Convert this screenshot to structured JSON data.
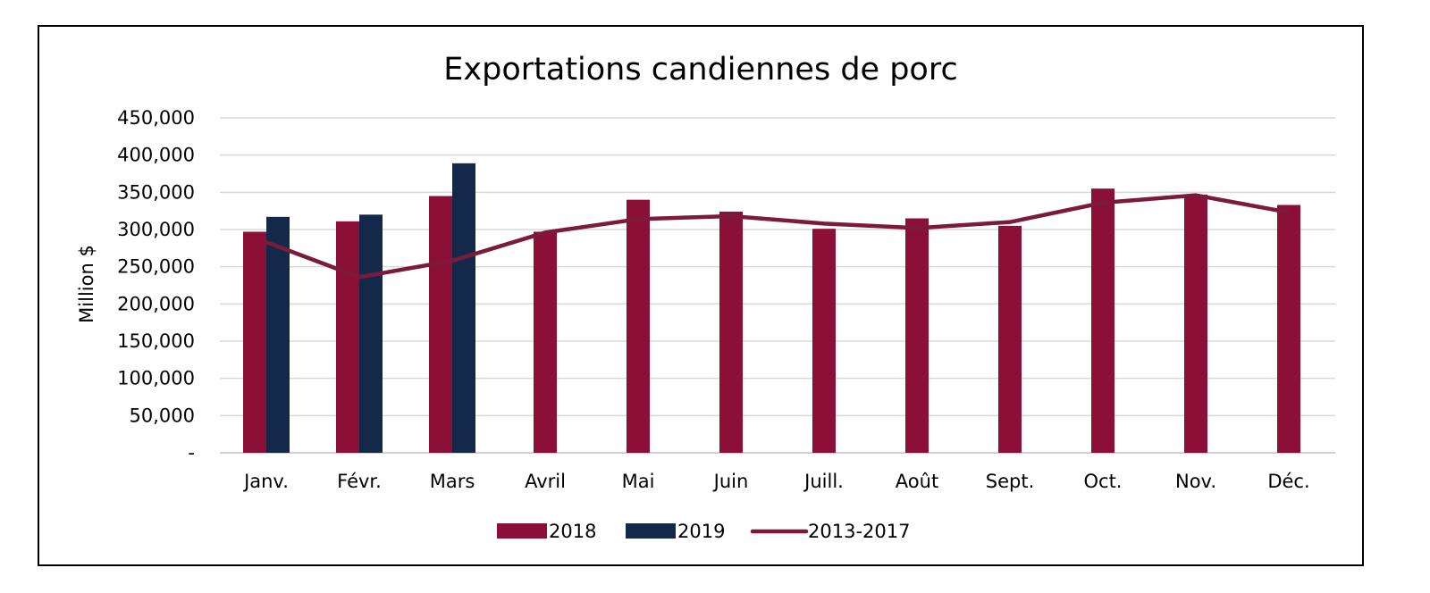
{
  "chart_data": {
    "type": "bar",
    "title": "Exportations candiennes de porc",
    "xlabel": "",
    "ylabel": "Million $",
    "ylim": [
      0,
      450000
    ],
    "yticks": [
      0,
      50000,
      100000,
      150000,
      200000,
      250000,
      300000,
      350000,
      400000,
      450000
    ],
    "ytick_labels": [
      "-",
      "50,000",
      "100,000",
      "150,000",
      "200,000",
      "250,000",
      "300,000",
      "350,000",
      "400,000",
      "450,000"
    ],
    "categories": [
      "Janv.",
      "Févr.",
      "Mars",
      "Avril",
      "Mai",
      "Juin",
      "Juill.",
      "Août",
      "Sept.",
      "Oct.",
      "Nov.",
      "Déc."
    ],
    "series": [
      {
        "name": "2018",
        "kind": "bar",
        "color": "#8b1038",
        "values": [
          297000,
          311000,
          345000,
          297000,
          340000,
          324000,
          301000,
          315000,
          305000,
          355000,
          347000,
          333000
        ]
      },
      {
        "name": "2019",
        "kind": "bar",
        "color": "#14294a",
        "values": [
          317000,
          320000,
          389000,
          null,
          null,
          null,
          null,
          null,
          null,
          null,
          null,
          null
        ]
      },
      {
        "name": "2013-2017",
        "kind": "line",
        "color": "#7b1a3a",
        "values": [
          283000,
          236000,
          258000,
          296000,
          314000,
          318000,
          308000,
          302000,
          310000,
          336000,
          346000,
          323000
        ]
      }
    ],
    "grid": true,
    "legend_position": "bottom"
  }
}
